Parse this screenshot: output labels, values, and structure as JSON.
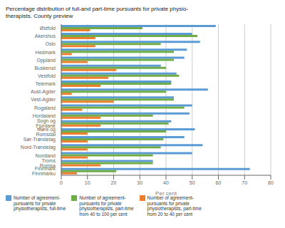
{
  "chart_data": {
    "type": "bar",
    "orientation": "horizontal",
    "title": "Percentage distribution of full-and part-time pursuants for private physio-\ntherapists. County preview",
    "categories": [
      "Østfold",
      "Akershus",
      "Oslo",
      "Hedmark",
      "Oppland",
      "Buskerud",
      "Vestfold",
      "Telemark",
      "Aust-Agder",
      "Vest-Agder",
      "Rogaland",
      "Hordaland",
      "Sogn og Fjordane",
      "Møre og Romsdal",
      "Sør-Trøndelag",
      "Nord-Trøndelag",
      "Nordland",
      "Troms Romsa",
      "Finnmark Finnmárku"
    ],
    "series": [
      {
        "name": "Number of agreement-\npursuants for private\nphysiotherapists, full-time",
        "color": "#5b9bd5",
        "values": [
          59,
          50,
          53,
          48,
          47,
          38,
          44,
          42,
          56,
          43,
          50,
          49,
          42,
          51,
          47,
          54,
          50,
          35,
          72
        ]
      },
      {
        "name": "Number of agreement-\npursuants for private\nphysiotherapists, part-time\nfrom 40 to 100 per cent",
        "color": "#70ad47",
        "values": [
          31,
          52,
          38,
          43,
          43,
          40,
          45,
          42,
          40,
          43,
          47,
          35,
          41,
          40,
          39,
          38,
          35,
          35,
          21
        ]
      },
      {
        "name": "Number of agreement-\npursuants for private\nphysiotherapists, part-time\nfrom 20 to 40 per cent",
        "color": "#ed7d31",
        "values": [
          11,
          13,
          13,
          4,
          10,
          21,
          18,
          15,
          4,
          20,
          8,
          15,
          15,
          10,
          10,
          10,
          10,
          15,
          6
        ]
      }
    ],
    "xlabel": "Per cent",
    "xlim": [
      0,
      80
    ],
    "xticks": [
      0,
      10,
      20,
      30,
      40,
      50,
      60,
      70,
      80
    ],
    "grid": true,
    "legend": "lower left"
  }
}
